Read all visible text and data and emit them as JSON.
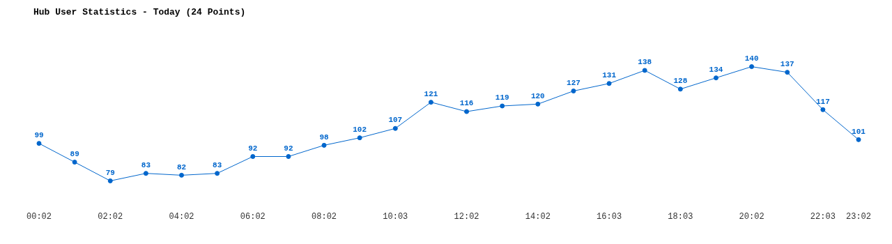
{
  "chart_data": {
    "type": "line",
    "title": "Hub User Statistics - Today (24 Points)",
    "categories": [
      "00:02",
      null,
      "02:02",
      null,
      "04:02",
      null,
      "06:02",
      null,
      "08:02",
      null,
      "10:03",
      null,
      "12:02",
      null,
      "14:02",
      null,
      "16:03",
      null,
      "18:03",
      null,
      "20:02",
      null,
      "22:03",
      "23:02"
    ],
    "values": [
      99,
      89,
      79,
      83,
      82,
      83,
      92,
      92,
      98,
      102,
      107,
      121,
      116,
      119,
      120,
      127,
      131,
      138,
      128,
      134,
      140,
      137,
      117,
      101
    ],
    "color": "#0066cc",
    "data_labels": true,
    "marker": "circle"
  }
}
